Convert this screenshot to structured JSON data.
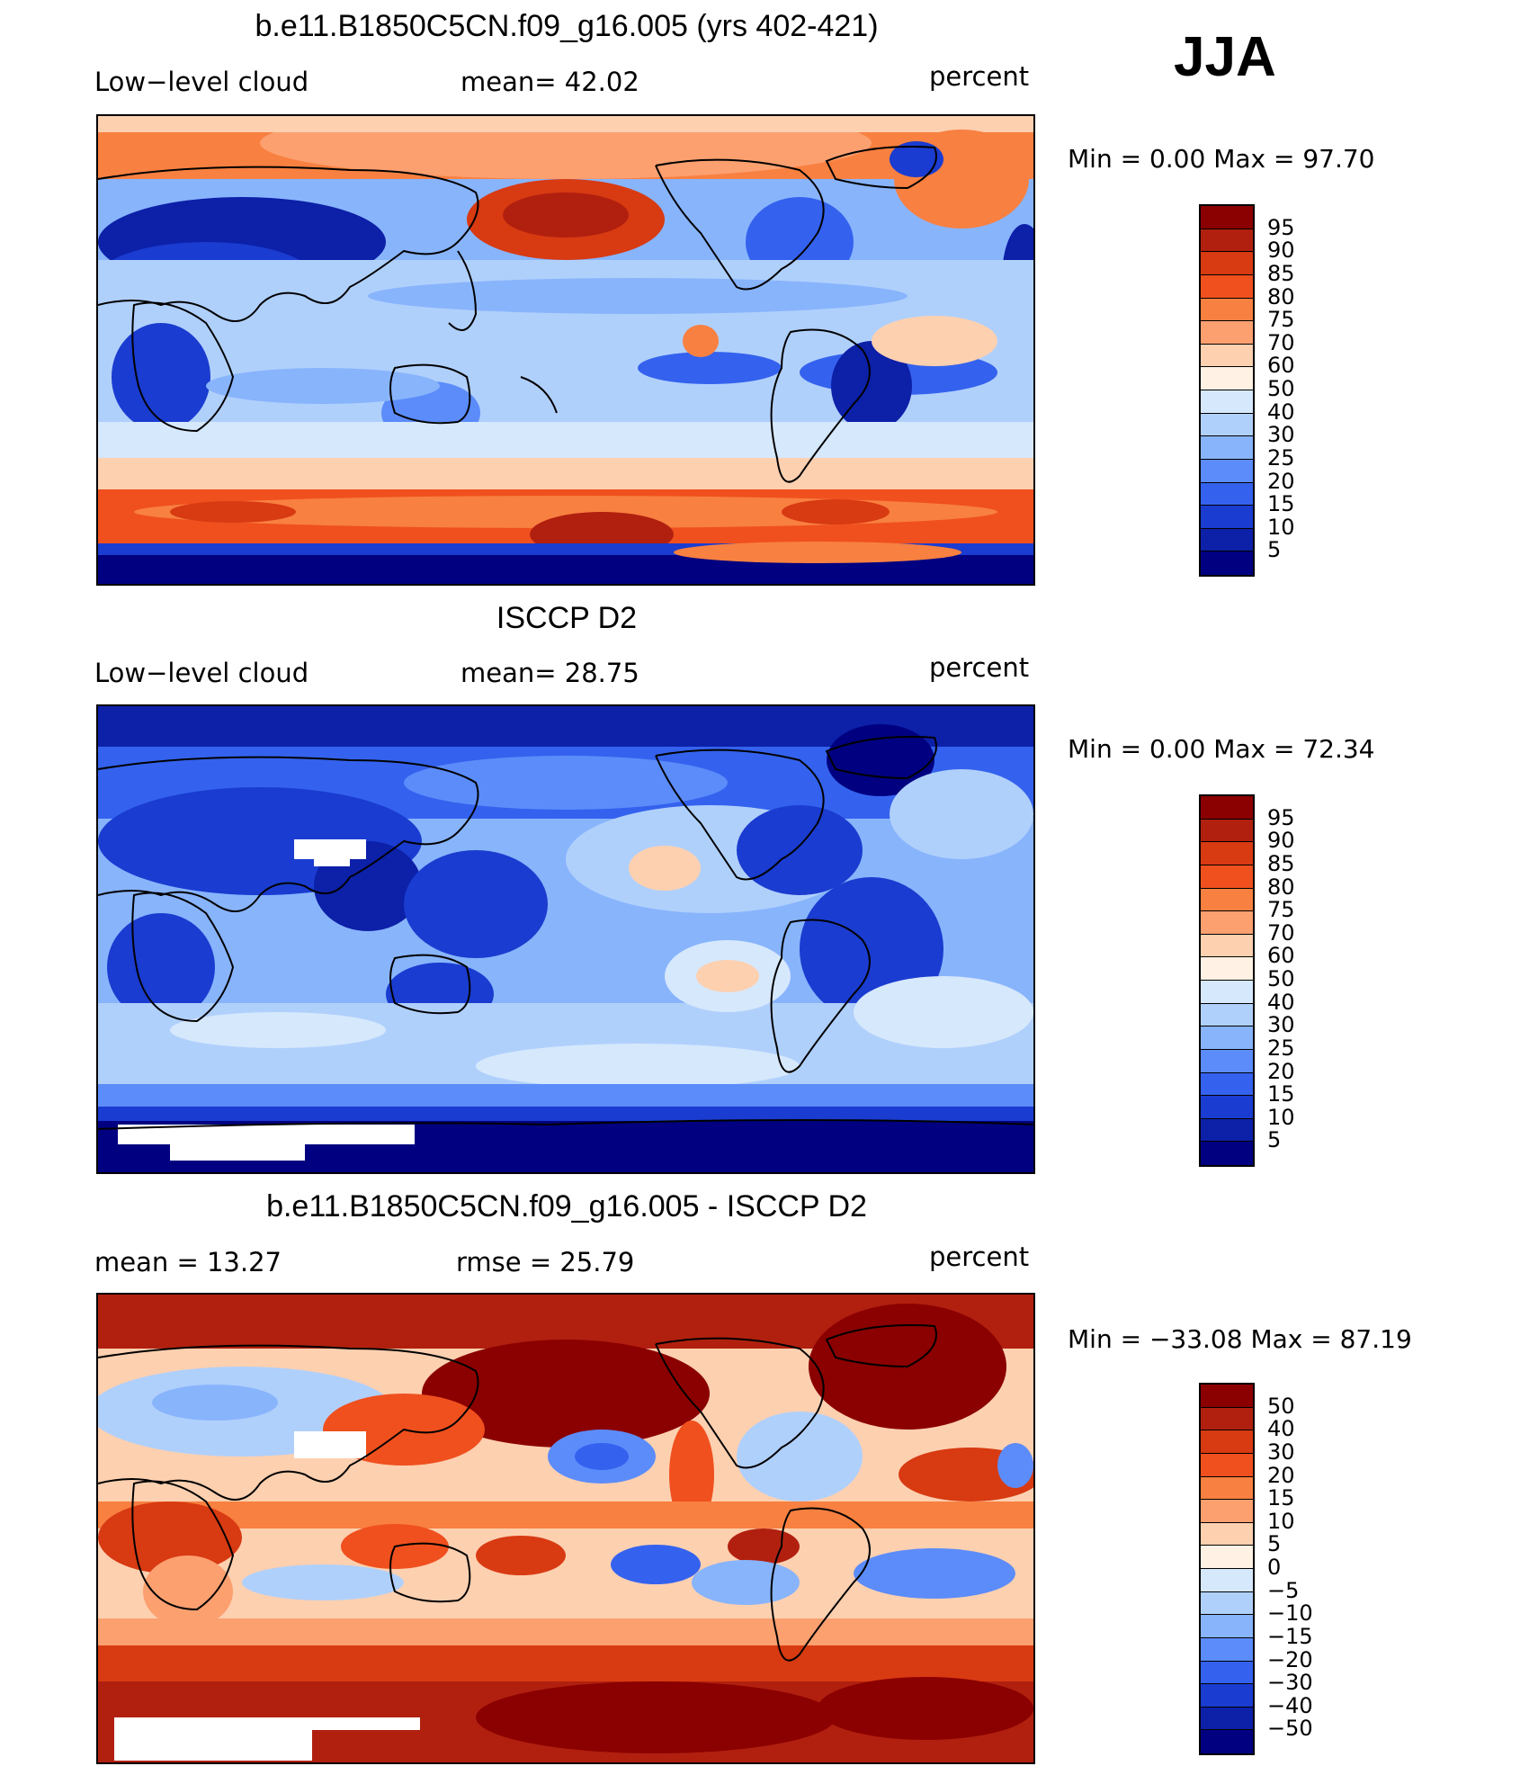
{
  "season": "JJA",
  "panels": [
    {
      "id": "model",
      "title": "b.e11.B1850C5CN.f09_g16.005 (yrs 402-421)",
      "left_label": "Low−level cloud",
      "mid_label": "mean=   42.02",
      "units": "percent",
      "min_max": "Min  =    0.00  Max  =   97.70",
      "colorbar_labels": [
        "95",
        "90",
        "85",
        "80",
        "75",
        "70",
        "60",
        "50",
        "40",
        "30",
        "25",
        "20",
        "15",
        "10",
        "5"
      ],
      "colorbar_colors": [
        "#8b0000",
        "#b1200f",
        "#d83a12",
        "#f0501e",
        "#f88040",
        "#fca070",
        "#fdd0b0",
        "#fff2e4",
        "#d6e8fc",
        "#b0d0fc",
        "#88b4fc",
        "#5c8cfa",
        "#3462ee",
        "#1a3cd0",
        "#0c20a8",
        "#000080"
      ]
    },
    {
      "id": "obs",
      "title": "ISCCP D2",
      "left_label": "Low−level cloud",
      "mid_label": "mean=   28.75",
      "units": "percent",
      "min_max": "Min  =    0.00  Max  =   72.34",
      "colorbar_labels": [
        "95",
        "90",
        "85",
        "80",
        "75",
        "70",
        "60",
        "50",
        "40",
        "30",
        "25",
        "20",
        "15",
        "10",
        "5"
      ],
      "colorbar_colors": [
        "#8b0000",
        "#b1200f",
        "#d83a12",
        "#f0501e",
        "#f88040",
        "#fca070",
        "#fdd0b0",
        "#fff2e4",
        "#d6e8fc",
        "#b0d0fc",
        "#88b4fc",
        "#5c8cfa",
        "#3462ee",
        "#1a3cd0",
        "#0c20a8",
        "#000080"
      ]
    },
    {
      "id": "diff",
      "title": "b.e11.B1850C5CN.f09_g16.005 - ISCCP D2",
      "left_label": "mean  =    13.27",
      "mid_label": "rmse  =    25.79",
      "units": "percent",
      "min_max": "Min  = −33.08  Max  =   87.19",
      "colorbar_labels": [
        "50",
        "40",
        "30",
        "20",
        "15",
        "10",
        "5",
        "0",
        "−5",
        "−10",
        "−15",
        "−20",
        "−30",
        "−40",
        "−50"
      ],
      "colorbar_colors": [
        "#8b0000",
        "#b1200f",
        "#d83a12",
        "#f0501e",
        "#f88040",
        "#fca070",
        "#fdd0b0",
        "#fff2e4",
        "#d6e8fc",
        "#b0d0fc",
        "#88b4fc",
        "#5c8cfa",
        "#3462ee",
        "#1a3cd0",
        "#0c20a8",
        "#000080"
      ]
    }
  ]
}
